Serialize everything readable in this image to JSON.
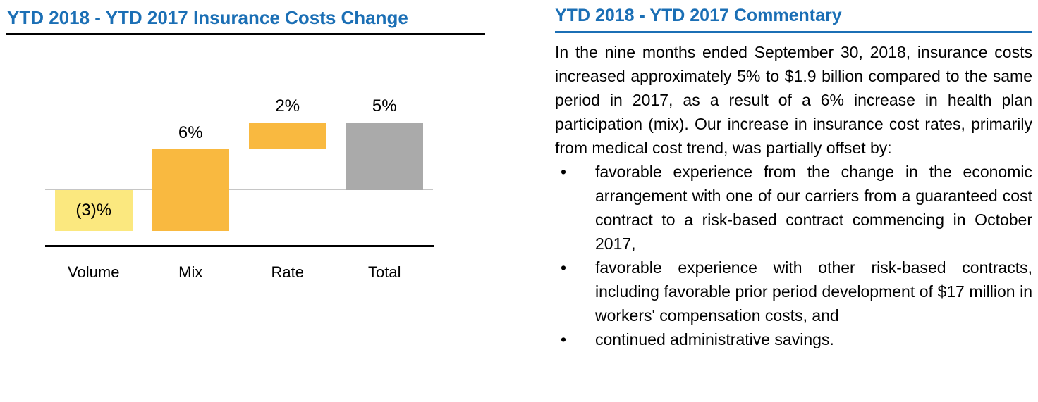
{
  "colors": {
    "title_blue": "#1B6FB5",
    "rule_left": "#000000",
    "rule_right": "#1B6FB5",
    "baseline_gray": "#C6C6C6",
    "axis_black": "#000000",
    "bar_volume": "#FBE87F",
    "bar_mix": "#F9B940",
    "bar_rate": "#F9B940",
    "bar_total": "#AAAAAA"
  },
  "chart_data": {
    "type": "bar",
    "subtype": "waterfall",
    "title": "YTD 2018 - YTD 2017 Insurance Costs Change",
    "categories": [
      "Volume",
      "Mix",
      "Rate",
      "Total"
    ],
    "values": [
      -3,
      6,
      2,
      5
    ],
    "data_labels": [
      "(3)%",
      "6%",
      "2%",
      "5%"
    ],
    "unit": "%",
    "baseline": 0,
    "ylim": [
      -4,
      7
    ],
    "grid": false,
    "legend": false,
    "segments": [
      {
        "category": "Volume",
        "start": 0,
        "end": -3,
        "label": "(3)%",
        "label_position": "inside",
        "color": "#FBE87F"
      },
      {
        "category": "Mix",
        "start": -3,
        "end": 3,
        "label": "6%",
        "label_position": "above",
        "color": "#F9B940"
      },
      {
        "category": "Rate",
        "start": 3,
        "end": 5,
        "label": "2%",
        "label_position": "above",
        "color": "#F9B940"
      },
      {
        "category": "Total",
        "start": 0,
        "end": 5,
        "label": "5%",
        "label_position": "above",
        "color": "#AAAAAA"
      }
    ]
  },
  "commentary": {
    "title": "YTD 2018 - YTD 2017 Commentary",
    "intro": "In the nine months ended September 30, 2018, insurance costs increased approximately 5% to $1.9 billion compared to the same period in 2017, as a result of a 6% increase in health plan participation (mix). Our increase in insurance cost rates, primarily from medical cost trend, was partially offset by:",
    "bullet_char": "•",
    "bullets": [
      "favorable experience from the change in the economic arrangement with one of our carriers from a guaranteed cost contract to a risk-based contract commencing in October 2017,",
      "favorable experience with other risk-based contracts, including favorable prior period development of $17 million in workers' compensation costs, and",
      "continued administrative savings."
    ]
  }
}
